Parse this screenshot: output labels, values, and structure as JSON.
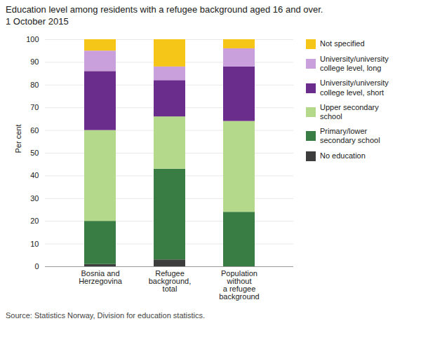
{
  "chart_data": {
    "type": "bar",
    "stacked": true,
    "title": "Education level among residents with a refugee background aged 16 and over.",
    "subtitle": "1 October 2015",
    "ylabel": "Per cent",
    "source": "Source: Statistics Norway, Division for education statistics.",
    "categories": [
      "Bosnia and\nHerzegovina",
      "Refugee\nbackground,\ntotal",
      "Population\nwithout\na refugee\nbackground"
    ],
    "series": [
      {
        "name": "No education",
        "color": "#3d3d3d",
        "values": [
          1,
          3,
          0
        ]
      },
      {
        "name": "Primary/lower\nsecondary school",
        "color": "#3a7d44",
        "values": [
          19,
          40,
          24
        ]
      },
      {
        "name": "Upper secondary\nschool",
        "color": "#b5d98a",
        "values": [
          40,
          23,
          40
        ]
      },
      {
        "name": "University/university\ncollege level, short",
        "color": "#6b2d8b",
        "values": [
          26,
          16,
          24
        ]
      },
      {
        "name": "University/university\ncollege level, long",
        "color": "#c9a0dc",
        "values": [
          9,
          6,
          8
        ]
      },
      {
        "name": "Not specified",
        "color": "#f5c518",
        "values": [
          5,
          12,
          4
        ]
      }
    ],
    "ylim": [
      0,
      100
    ],
    "yticks": [
      0,
      10,
      20,
      30,
      40,
      50,
      60,
      70,
      80,
      90,
      100
    ],
    "grid": true,
    "legend": "right"
  }
}
